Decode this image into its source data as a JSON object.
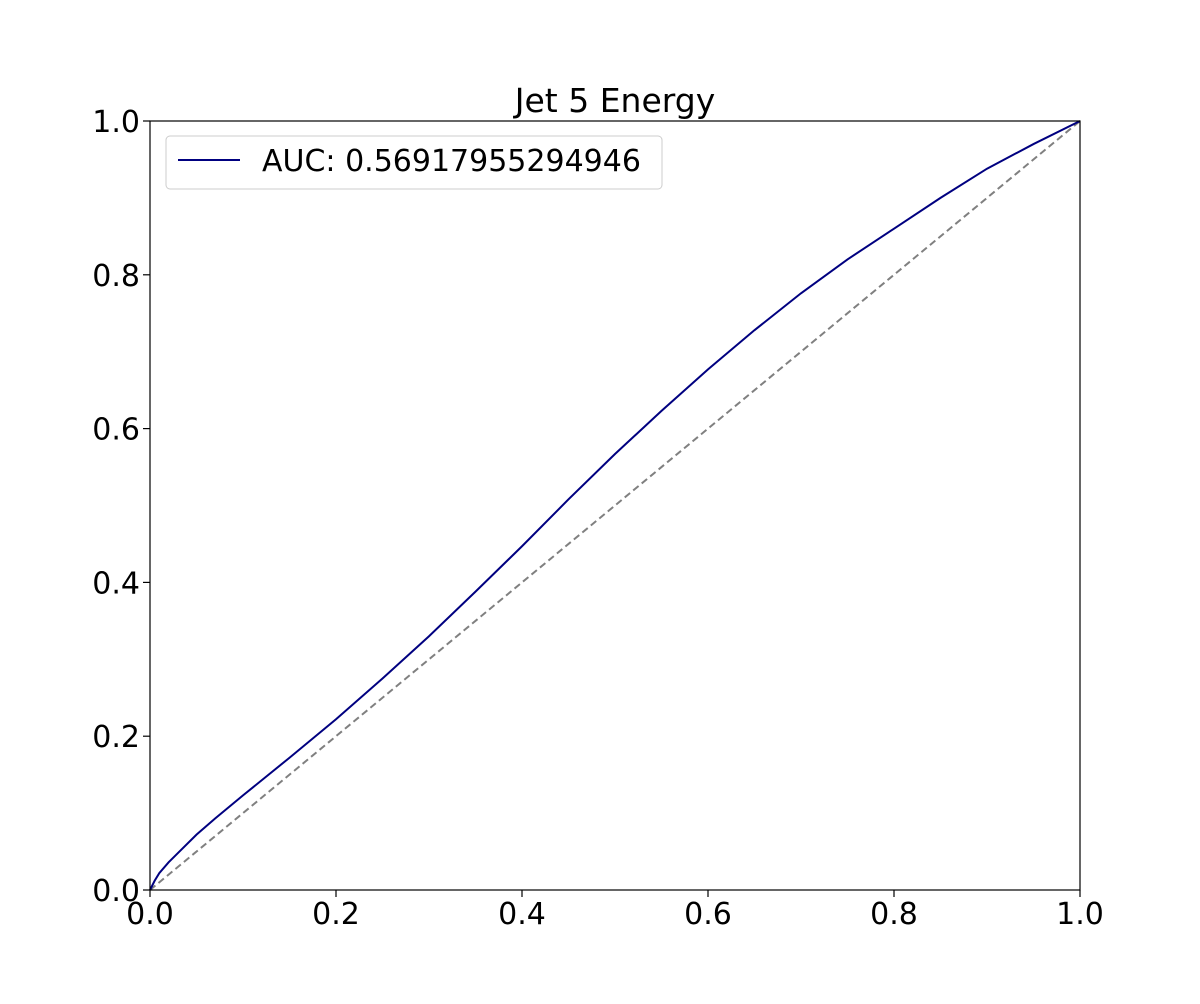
{
  "chart_data": {
    "type": "line",
    "title": "Jet 5 Energy",
    "xlabel": "",
    "ylabel": "",
    "xlim": [
      0.0,
      1.0
    ],
    "ylim": [
      0.0,
      1.0
    ],
    "x_ticks": [
      "0.0",
      "0.2",
      "0.4",
      "0.6",
      "0.8",
      "1.0"
    ],
    "y_ticks": [
      "0.0",
      "0.2",
      "0.4",
      "0.6",
      "0.8",
      "1.0"
    ],
    "grid": false,
    "legend_position": "upper-left",
    "series": [
      {
        "name": "AUC: 0.56917955294946",
        "color": "#000080",
        "x": [
          0.0,
          0.005,
          0.01,
          0.02,
          0.03,
          0.05,
          0.07,
          0.1,
          0.15,
          0.2,
          0.25,
          0.3,
          0.35,
          0.4,
          0.45,
          0.5,
          0.55,
          0.6,
          0.65,
          0.7,
          0.75,
          0.8,
          0.85,
          0.9,
          0.95,
          1.0
        ],
        "y": [
          0.0,
          0.012,
          0.022,
          0.036,
          0.048,
          0.072,
          0.093,
          0.123,
          0.172,
          0.222,
          0.275,
          0.33,
          0.388,
          0.447,
          0.508,
          0.567,
          0.623,
          0.677,
          0.728,
          0.776,
          0.82,
          0.86,
          0.9,
          0.938,
          0.97,
          1.0
        ]
      },
      {
        "color": "#808080",
        "style": "dashed",
        "x": [
          0.0,
          1.0
        ],
        "y": [
          0.0,
          1.0
        ]
      }
    ]
  }
}
